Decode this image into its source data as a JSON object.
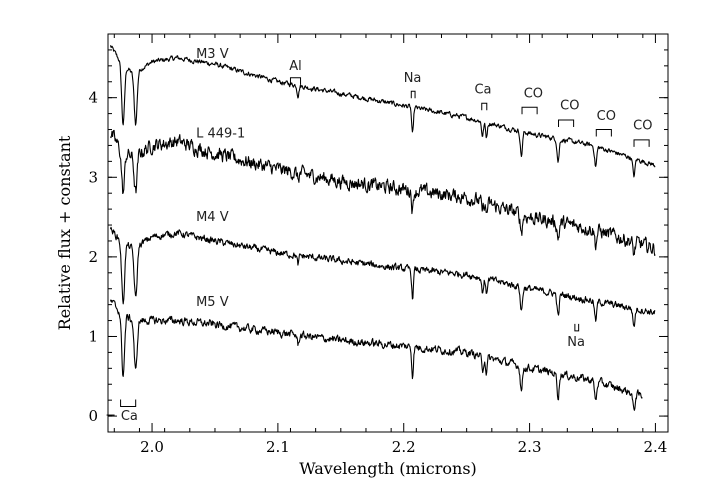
{
  "chart_data": {
    "type": "line",
    "title": "",
    "xlabel": "Wavelength (microns)",
    "ylabel": "Relative flux + constant",
    "xlim": [
      1.965,
      2.41
    ],
    "ylim": [
      -0.2,
      4.8
    ],
    "x_ticks": [
      2.0,
      2.1,
      2.2,
      2.3,
      2.4
    ],
    "x_tick_labels": [
      "2.0",
      "2.1",
      "2.2",
      "2.3",
      "2.4"
    ],
    "y_ticks": [
      0,
      1,
      2,
      3,
      4
    ],
    "y_tick_labels": [
      "0",
      "1",
      "2",
      "3",
      "4"
    ],
    "grid": false,
    "series": [
      {
        "name": "M3 V",
        "label_at": [
          2.035,
          4.5
        ],
        "x": [
          1.967,
          1.975,
          1.985,
          2.0,
          2.02,
          2.05,
          2.1,
          2.15,
          2.2,
          2.25,
          2.3,
          2.35,
          2.4
        ],
        "values": [
          4.65,
          4.45,
          4.3,
          4.45,
          4.5,
          4.42,
          4.2,
          4.05,
          3.9,
          3.75,
          3.55,
          3.4,
          3.15
        ],
        "noise": 0.025
      },
      {
        "name": "L 449-1",
        "label_at": [
          2.035,
          3.5
        ],
        "x": [
          1.967,
          1.975,
          1.985,
          2.0,
          2.02,
          2.05,
          2.1,
          2.15,
          2.2,
          2.25,
          2.3,
          2.35,
          2.4
        ],
        "values": [
          3.55,
          3.35,
          3.25,
          3.4,
          3.45,
          3.3,
          3.1,
          2.95,
          2.85,
          2.75,
          2.5,
          2.35,
          2.1
        ],
        "noise": 0.07
      },
      {
        "name": "M4 V",
        "label_at": [
          2.035,
          2.45
        ],
        "x": [
          1.967,
          1.975,
          1.985,
          2.0,
          2.02,
          2.05,
          2.1,
          2.15,
          2.2,
          2.25,
          2.3,
          2.35,
          2.4
        ],
        "values": [
          2.35,
          2.2,
          2.1,
          2.25,
          2.3,
          2.2,
          2.05,
          1.95,
          1.85,
          1.78,
          1.6,
          1.45,
          1.3
        ],
        "noise": 0.035
      },
      {
        "name": "M5 V",
        "label_at": [
          2.035,
          1.38
        ],
        "x": [
          1.967,
          1.975,
          1.985,
          2.0,
          2.02,
          2.05,
          2.1,
          2.15,
          2.2,
          2.25,
          2.3,
          2.35,
          2.39
        ],
        "values": [
          1.45,
          1.3,
          1.2,
          1.2,
          1.2,
          1.15,
          1.05,
          0.95,
          0.88,
          0.8,
          0.6,
          0.45,
          0.25
        ],
        "noise": 0.04
      }
    ],
    "absorption_lines": [
      {
        "x": 1.977,
        "depth": 0.75,
        "width": 0.0016
      },
      {
        "x": 1.987,
        "depth": 0.65,
        "width": 0.0016
      },
      {
        "x": 2.116,
        "depth": 0.12,
        "width": 0.001
      },
      {
        "x": 2.207,
        "depth": 0.35,
        "width": 0.001
      },
      {
        "x": 2.2626,
        "depth": 0.18,
        "width": 0.001
      },
      {
        "x": 2.2657,
        "depth": 0.18,
        "width": 0.001
      },
      {
        "x": 2.2935,
        "depth": 0.3,
        "width": 0.0012
      },
      {
        "x": 2.3227,
        "depth": 0.28,
        "width": 0.0012
      },
      {
        "x": 2.3525,
        "depth": 0.25,
        "width": 0.0012
      },
      {
        "x": 2.3829,
        "depth": 0.22,
        "width": 0.0012
      }
    ],
    "annotations": [
      {
        "text": "Al",
        "x": 2.114,
        "y": 4.35,
        "bracket": [
          2.11,
          2.118
        ],
        "bracket_y": 4.25,
        "dir": "down"
      },
      {
        "text": "Na",
        "x": 2.207,
        "y": 4.2,
        "bracket": [
          2.206,
          2.209
        ],
        "bracket_y": 4.08,
        "dir": "down"
      },
      {
        "text": "Ca",
        "x": 2.263,
        "y": 4.05,
        "bracket": [
          2.262,
          2.266
        ],
        "bracket_y": 3.93,
        "dir": "down"
      },
      {
        "text": "CO",
        "x": 2.303,
        "y": 4.0,
        "bracket": [
          2.294,
          2.306
        ],
        "bracket_y": 3.88,
        "dir": "down"
      },
      {
        "text": "CO",
        "x": 2.332,
        "y": 3.85,
        "bracket": [
          2.323,
          2.335
        ],
        "bracket_y": 3.72,
        "dir": "down"
      },
      {
        "text": "CO",
        "x": 2.361,
        "y": 3.72,
        "bracket": [
          2.353,
          2.365
        ],
        "bracket_y": 3.6,
        "dir": "down"
      },
      {
        "text": "CO",
        "x": 2.39,
        "y": 3.6,
        "bracket": [
          2.383,
          2.395
        ],
        "bracket_y": 3.47,
        "dir": "down"
      },
      {
        "text": "Na",
        "x": 2.337,
        "y": 0.88,
        "bracket": [
          2.336,
          2.339
        ],
        "bracket_y": 1.07,
        "dir": "up"
      },
      {
        "text": "Ca",
        "x": 1.982,
        "y": -0.05,
        "bracket": [
          1.975,
          1.987
        ],
        "bracket_y": 0.12,
        "dir": "up",
        "dash": true
      }
    ]
  }
}
